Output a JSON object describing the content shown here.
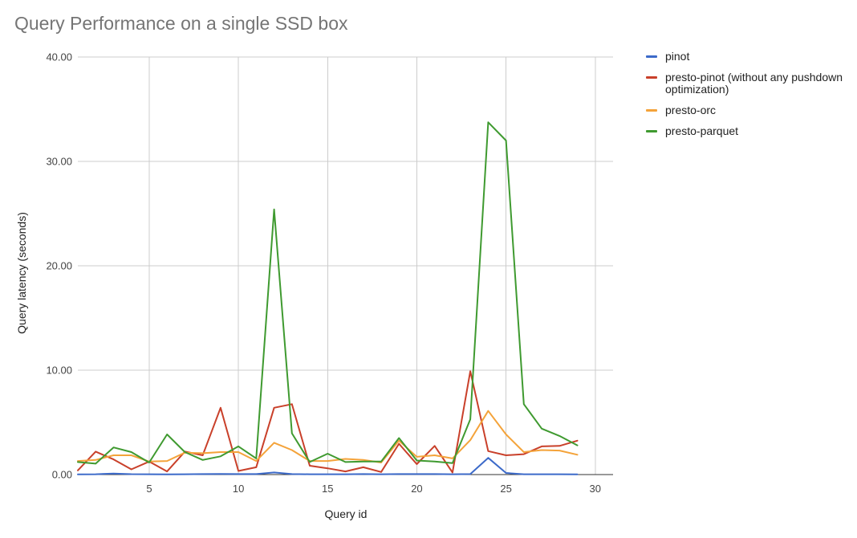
{
  "chart_data": {
    "type": "line",
    "title": "Query Performance on a single SSD box",
    "xlabel": "Query id",
    "ylabel": "Query latency (seconds)",
    "xlim": [
      1,
      31
    ],
    "ylim": [
      0,
      40
    ],
    "x_ticks": [
      5,
      10,
      15,
      20,
      25,
      30
    ],
    "x_tick_labels": [
      "5",
      "10",
      "15",
      "20",
      "25",
      "30"
    ],
    "y_ticks": [
      0,
      10,
      20,
      30,
      40
    ],
    "y_tick_labels": [
      "0.00",
      "10.00",
      "20.00",
      "30.00",
      "40.00"
    ],
    "grid": true,
    "legend_position": "right",
    "x": [
      1,
      2,
      3,
      4,
      5,
      6,
      7,
      8,
      9,
      10,
      11,
      12,
      13,
      14,
      15,
      16,
      17,
      18,
      19,
      20,
      21,
      22,
      23,
      24,
      25,
      26,
      27,
      28,
      29
    ],
    "series": [
      {
        "name": "pinot",
        "color": "#3c6ac9",
        "values": [
          0.02,
          0.03,
          0.1,
          0.04,
          0.03,
          0.02,
          0.03,
          0.05,
          0.06,
          0.05,
          0.05,
          0.2,
          0.05,
          0.03,
          0.03,
          0.03,
          0.05,
          0.03,
          0.05,
          0.05,
          0.05,
          0.03,
          0.05,
          1.6,
          0.15,
          0.03,
          0.03,
          0.03,
          0.02
        ]
      },
      {
        "name": "presto-pinot (without any pushdown optimization)",
        "color": "#c9402a",
        "values": [
          0.4,
          2.2,
          1.45,
          0.5,
          1.25,
          0.3,
          2.2,
          1.85,
          6.4,
          0.35,
          0.7,
          6.4,
          6.75,
          0.85,
          0.6,
          0.3,
          0.7,
          0.25,
          2.95,
          1.0,
          2.75,
          0.2,
          9.9,
          2.25,
          1.85,
          1.95,
          2.7,
          2.75,
          3.25
        ]
      },
      {
        "name": "presto-orc",
        "color": "#f4a33a",
        "values": [
          1.3,
          1.4,
          1.85,
          1.85,
          1.25,
          1.3,
          2.1,
          2.05,
          2.15,
          2.15,
          1.3,
          3.05,
          2.35,
          1.3,
          1.3,
          1.5,
          1.4,
          1.15,
          3.25,
          1.7,
          1.85,
          1.55,
          3.3,
          6.1,
          3.85,
          2.15,
          2.35,
          2.3,
          1.9
        ]
      },
      {
        "name": "presto-parquet",
        "color": "#3f9a30",
        "values": [
          1.2,
          1.05,
          2.6,
          2.15,
          1.15,
          3.85,
          2.15,
          1.4,
          1.75,
          2.7,
          1.55,
          25.4,
          3.95,
          1.2,
          2.0,
          1.2,
          1.25,
          1.25,
          3.5,
          1.35,
          1.25,
          1.1,
          5.3,
          33.75,
          32.0,
          6.75,
          4.4,
          3.7,
          2.8
        ]
      }
    ]
  }
}
